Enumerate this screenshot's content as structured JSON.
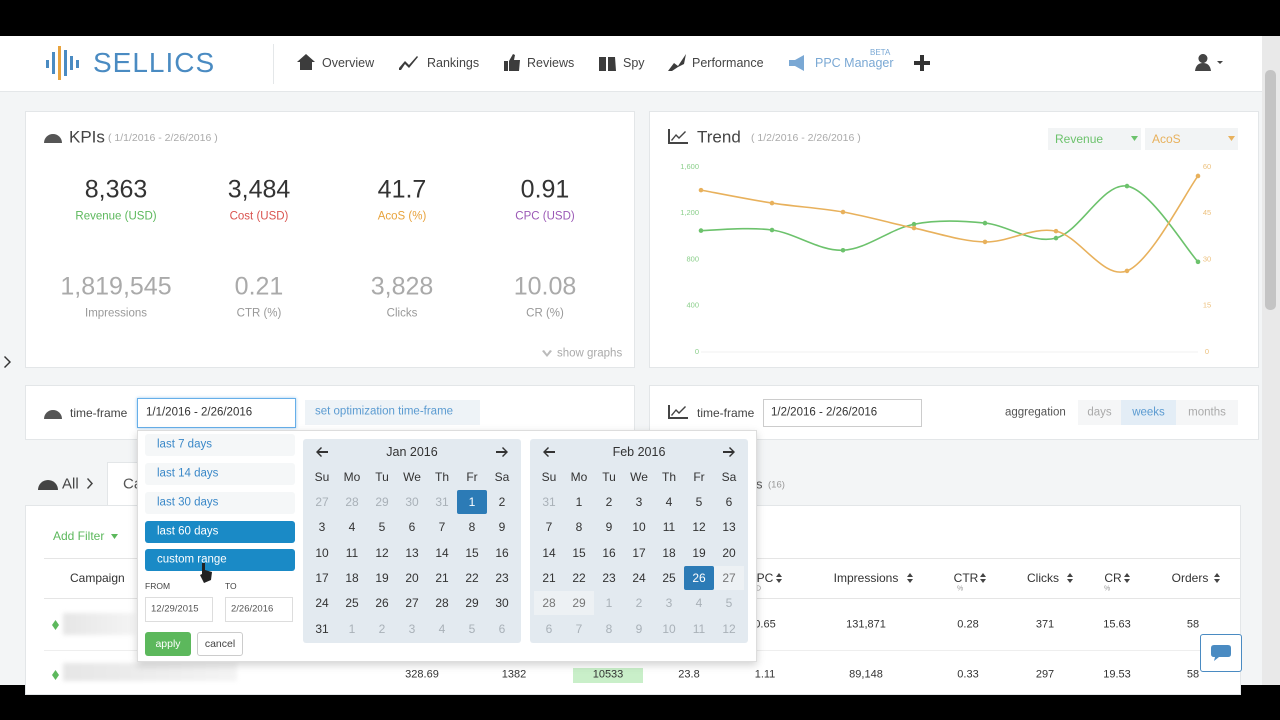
{
  "header": {
    "brand": "SELLICS",
    "nav": [
      "Overview",
      "Rankings",
      "Reviews",
      "Spy",
      "Performance",
      "PPC Manager"
    ],
    "beta": "BETA"
  },
  "kpis": {
    "title": "KPIs",
    "range": "( 1/1/2016 - 2/26/2016 )",
    "primary": [
      {
        "value": "8,363",
        "label": "Revenue (USD)",
        "color": "#5cb85c"
      },
      {
        "value": "3,484",
        "label": "Cost (USD)",
        "color": "#d9534f"
      },
      {
        "value": "41.7",
        "label": "AcoS (%)",
        "color": "#e8a33d"
      },
      {
        "value": "0.91",
        "label": "CPC (USD)",
        "color": "#9b59b6"
      }
    ],
    "secondary": [
      {
        "value": "1,819,545",
        "label": "Impressions"
      },
      {
        "value": "0.21",
        "label": "CTR (%)"
      },
      {
        "value": "3,828",
        "label": "Clicks"
      },
      {
        "value": "10.08",
        "label": "CR (%)"
      }
    ],
    "show_graphs": "show graphs"
  },
  "trend": {
    "title": "Trend",
    "range": "( 1/2/2016 - 2/26/2016 )",
    "chart": {
      "type": "line",
      "ylim": [
        0,
        1600
      ],
      "yticks": [
        0,
        400,
        800,
        {
          "value": 1200,
          "label": "1,200"
        },
        {
          "value": 1600,
          "label": "1,600"
        }
      ],
      "y2lim": [
        0,
        60
      ],
      "y2ticks": [
        0,
        15,
        30,
        45,
        60
      ],
      "series": [
        {
          "name": "Revenue",
          "color": "#6cc26c",
          "values": [
            1050,
            1055,
            880,
            1105,
            1115,
            985,
            1435,
            780
          ]
        },
        {
          "name": "AcoS",
          "color": "#e8b15c",
          "axis": "y2",
          "values": [
            52.5,
            48.3,
            45.4,
            40.2,
            35.7,
            39.2,
            26.3,
            57.1
          ]
        }
      ]
    }
  },
  "timeframe_left": {
    "label": "time-frame",
    "value": "1/1/2016 - 2/26/2016",
    "optimization": "set optimization time-frame"
  },
  "timeframe_right": {
    "label": "time-frame",
    "value": "1/2/2016 - 2/26/2016",
    "aggregation": "aggregation",
    "options": [
      "days",
      "weeks",
      "months"
    ],
    "selected": 1
  },
  "picker": {
    "presets": [
      "last 7 days",
      "last 14 days",
      "last 30 days",
      "last 60 days",
      "custom range"
    ],
    "highlighted": [
      3,
      4
    ],
    "from_label": "FROM",
    "to_label": "TO",
    "from": "12/29/2015",
    "to": "2/26/2016",
    "apply": "apply",
    "cancel": "cancel",
    "weekdays": [
      "Su",
      "Mo",
      "Tu",
      "We",
      "Th",
      "Fr",
      "Sa"
    ],
    "calendars": [
      {
        "month": "Jan 2016",
        "selected": 1,
        "range": "from",
        "weeks": [
          [
            27,
            28,
            29,
            30,
            31,
            1,
            2
          ],
          [
            3,
            4,
            5,
            6,
            7,
            8,
            9
          ],
          [
            10,
            11,
            12,
            13,
            14,
            15,
            16
          ],
          [
            17,
            18,
            19,
            20,
            21,
            22,
            23
          ],
          [
            24,
            25,
            26,
            27,
            28,
            29,
            30
          ],
          [
            31,
            1,
            2,
            3,
            4,
            5,
            6
          ]
        ]
      },
      {
        "month": "Feb 2016",
        "selected": 26,
        "range": "to",
        "weeks": [
          [
            31,
            1,
            2,
            3,
            4,
            5,
            6
          ],
          [
            7,
            8,
            9,
            10,
            11,
            12,
            13
          ],
          [
            14,
            15,
            16,
            17,
            18,
            19,
            20
          ],
          [
            21,
            22,
            23,
            24,
            25,
            26,
            27
          ],
          [
            28,
            29,
            1,
            2,
            3,
            4,
            5
          ],
          [
            6,
            7,
            8,
            9,
            10,
            11,
            12
          ]
        ]
      }
    ]
  },
  "tabs": {
    "all": "All",
    "partial": "Ca",
    "partial_right": "s",
    "count": "(16)"
  },
  "add_filter": "Add Filter",
  "table": {
    "columns": [
      {
        "label": "Campaign"
      },
      {
        "label": "PC",
        "sub": "D"
      },
      {
        "label": "Impressions"
      },
      {
        "label": "CTR",
        "sub": "%"
      },
      {
        "label": "Clicks"
      },
      {
        "label": "CR",
        "sub": "%"
      },
      {
        "label": "Orders"
      }
    ],
    "rows": [
      [
        "0.65",
        "131,871",
        "0.28",
        "371",
        "15.63",
        "58"
      ],
      [
        "328.69",
        "1382",
        "10533",
        "23.8",
        "1.11",
        "89,148",
        "0.33",
        "297",
        "19.53",
        "58"
      ]
    ]
  }
}
